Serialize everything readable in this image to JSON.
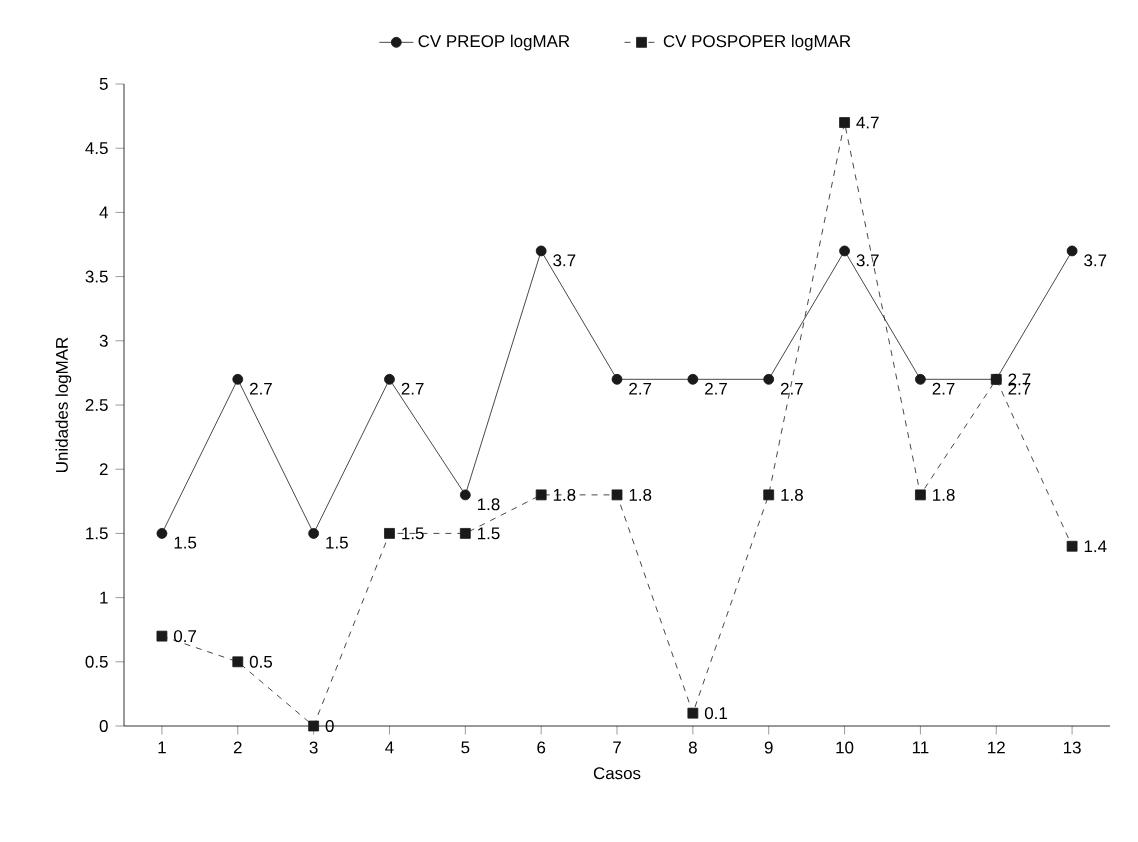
{
  "chart_data": {
    "type": "line",
    "xlabel": "Casos",
    "ylabel": "Unidades logMAR",
    "categories": [
      "1",
      "2",
      "3",
      "4",
      "5",
      "6",
      "7",
      "8",
      "9",
      "10",
      "11",
      "12",
      "13"
    ],
    "series": [
      {
        "name": "CV PREOP logMAR",
        "color": "#1a1a1a",
        "marker": "circle",
        "line_style": "solid",
        "values": [
          1.5,
          2.7,
          1.5,
          2.7,
          1.8,
          3.7,
          2.7,
          2.7,
          2.7,
          3.7,
          2.7,
          2.7,
          3.7
        ]
      },
      {
        "name": "CV POSPOPER logMAR",
        "color": "#1a1a1a",
        "marker": "square",
        "line_style": "dashed",
        "values": [
          0.7,
          0.5,
          0,
          1.5,
          1.5,
          1.8,
          1.8,
          0.1,
          1.8,
          4.7,
          1.8,
          2.7,
          1.4
        ]
      }
    ],
    "ylim": [
      0,
      5
    ],
    "yticks": [
      0,
      0.5,
      1,
      1.5,
      2,
      2.5,
      3,
      3.5,
      4,
      4.5,
      5
    ],
    "grid": false,
    "legend": "top",
    "data_labels": true
  }
}
